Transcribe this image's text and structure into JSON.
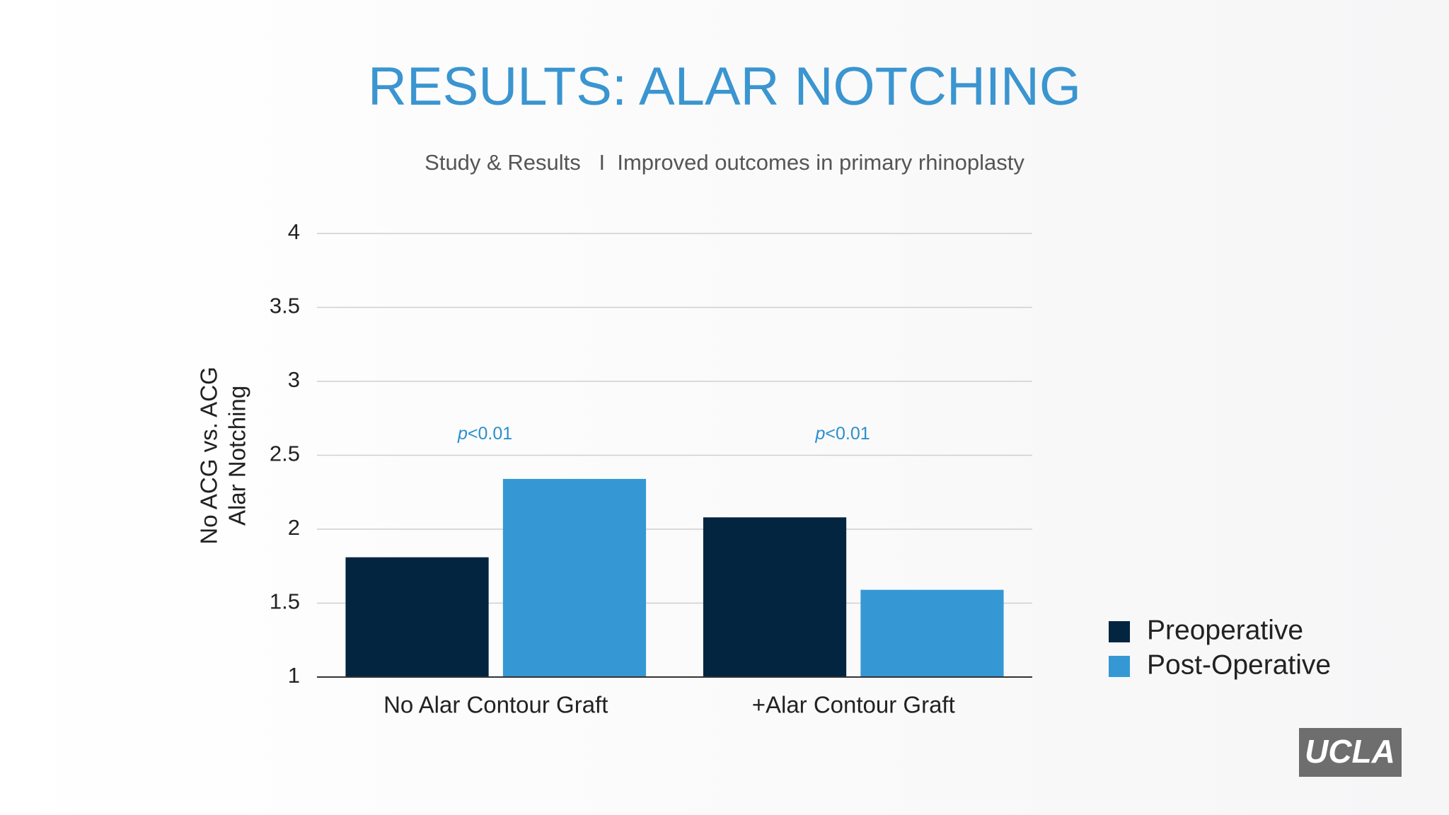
{
  "chart_data": {
    "type": "bar",
    "title": "RESULTS:  ALAR NOTCHING",
    "subtitle": "Study & Results   I  Improved outcomes in primary rhinoplasty",
    "ylabel": [
      "No ACG vs. ACG",
      "Alar Notching"
    ],
    "categories": [
      "No Alar Contour Graft",
      "+Alar Contour Graft"
    ],
    "series": [
      {
        "name": "Preoperative",
        "color": "#032540",
        "values": [
          1.81,
          2.08
        ]
      },
      {
        "name": "Post-Operative",
        "color": "#3598d5",
        "values": [
          2.34,
          1.59
        ]
      }
    ],
    "annotations": [
      {
        "emphasis": "p",
        "text": "<0.01"
      },
      {
        "emphasis": "p",
        "text": "<0.01"
      }
    ],
    "ylim": [
      1,
      4
    ],
    "yticks": [
      1,
      1.5,
      2,
      2.5,
      3,
      3.5,
      4
    ],
    "grid": true,
    "legend": "right"
  },
  "logo": "UCLA"
}
